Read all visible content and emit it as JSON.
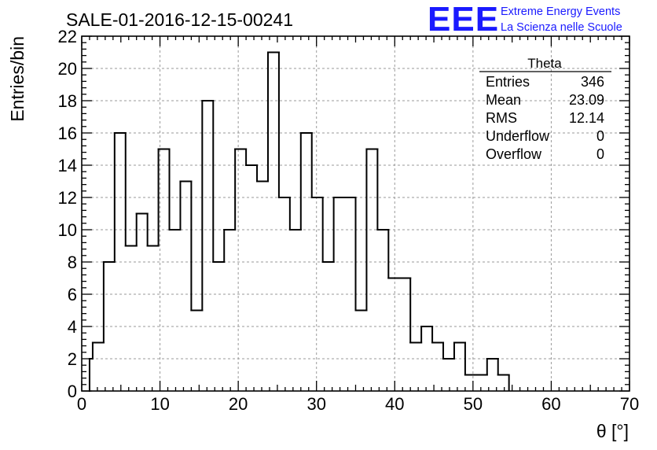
{
  "chart_data": {
    "type": "bar",
    "title": "SALE-01-2016-12-15-00241",
    "xlabel": "θ [°]",
    "ylabel": "Entries/bin",
    "xlim": [
      0,
      70
    ],
    "ylim": [
      0,
      22
    ],
    "grid": true,
    "xticks": [
      0,
      10,
      20,
      30,
      40,
      50,
      60,
      70
    ],
    "yticks": [
      0,
      2,
      4,
      6,
      8,
      10,
      12,
      14,
      16,
      18,
      20,
      22
    ],
    "bin_width": 1.4,
    "bins": [
      {
        "x0": 1.0,
        "x1": 1.4,
        "value": 2
      },
      {
        "x0": 1.4,
        "x1": 2.8,
        "value": 3
      },
      {
        "x0": 2.8,
        "x1": 4.2,
        "value": 8
      },
      {
        "x0": 4.2,
        "x1": 5.6,
        "value": 16
      },
      {
        "x0": 5.6,
        "x1": 7.0,
        "value": 9
      },
      {
        "x0": 7.0,
        "x1": 8.4,
        "value": 11
      },
      {
        "x0": 8.4,
        "x1": 9.8,
        "value": 9
      },
      {
        "x0": 9.8,
        "x1": 11.2,
        "value": 15
      },
      {
        "x0": 11.2,
        "x1": 12.6,
        "value": 10
      },
      {
        "x0": 12.6,
        "x1": 14.0,
        "value": 13
      },
      {
        "x0": 14.0,
        "x1": 15.4,
        "value": 5
      },
      {
        "x0": 15.4,
        "x1": 16.8,
        "value": 18
      },
      {
        "x0": 16.8,
        "x1": 18.2,
        "value": 8
      },
      {
        "x0": 18.2,
        "x1": 19.6,
        "value": 10
      },
      {
        "x0": 19.6,
        "x1": 21.0,
        "value": 15
      },
      {
        "x0": 21.0,
        "x1": 22.4,
        "value": 14
      },
      {
        "x0": 22.4,
        "x1": 23.8,
        "value": 13
      },
      {
        "x0": 23.8,
        "x1": 25.2,
        "value": 21
      },
      {
        "x0": 25.2,
        "x1": 26.6,
        "value": 12
      },
      {
        "x0": 26.6,
        "x1": 28.0,
        "value": 10
      },
      {
        "x0": 28.0,
        "x1": 29.4,
        "value": 16
      },
      {
        "x0": 29.4,
        "x1": 30.8,
        "value": 12
      },
      {
        "x0": 30.8,
        "x1": 32.2,
        "value": 8
      },
      {
        "x0": 32.2,
        "x1": 33.6,
        "value": 12
      },
      {
        "x0": 33.6,
        "x1": 35.0,
        "value": 12
      },
      {
        "x0": 35.0,
        "x1": 36.4,
        "value": 5
      },
      {
        "x0": 36.4,
        "x1": 37.8,
        "value": 15
      },
      {
        "x0": 37.8,
        "x1": 39.2,
        "value": 10
      },
      {
        "x0": 39.2,
        "x1": 40.6,
        "value": 7
      },
      {
        "x0": 40.6,
        "x1": 42.0,
        "value": 7
      },
      {
        "x0": 42.0,
        "x1": 43.4,
        "value": 3
      },
      {
        "x0": 43.4,
        "x1": 44.8,
        "value": 4
      },
      {
        "x0": 44.8,
        "x1": 46.2,
        "value": 3
      },
      {
        "x0": 46.2,
        "x1": 47.6,
        "value": 2
      },
      {
        "x0": 47.6,
        "x1": 49.0,
        "value": 3
      },
      {
        "x0": 49.0,
        "x1": 50.4,
        "value": 1
      },
      {
        "x0": 50.4,
        "x1": 51.8,
        "value": 1
      },
      {
        "x0": 51.8,
        "x1": 53.2,
        "value": 2
      },
      {
        "x0": 53.2,
        "x1": 54.6,
        "value": 1
      }
    ]
  },
  "stats_box": {
    "title": "Theta",
    "rows": [
      {
        "label": "Entries",
        "value": "346"
      },
      {
        "label": "Mean",
        "value": "23.09"
      },
      {
        "label": "RMS",
        "value": "12.14"
      },
      {
        "label": "Underflow",
        "value": "0"
      },
      {
        "label": "Overflow",
        "value": "0"
      }
    ]
  },
  "branding": {
    "logo_text": "EEE",
    "line1": "Extreme Energy Events",
    "line2": "La Scienza nelle Scuole",
    "color": "#1a1aff"
  },
  "colors": {
    "histogram": "#000000",
    "grid": "#9a9a9a"
  }
}
